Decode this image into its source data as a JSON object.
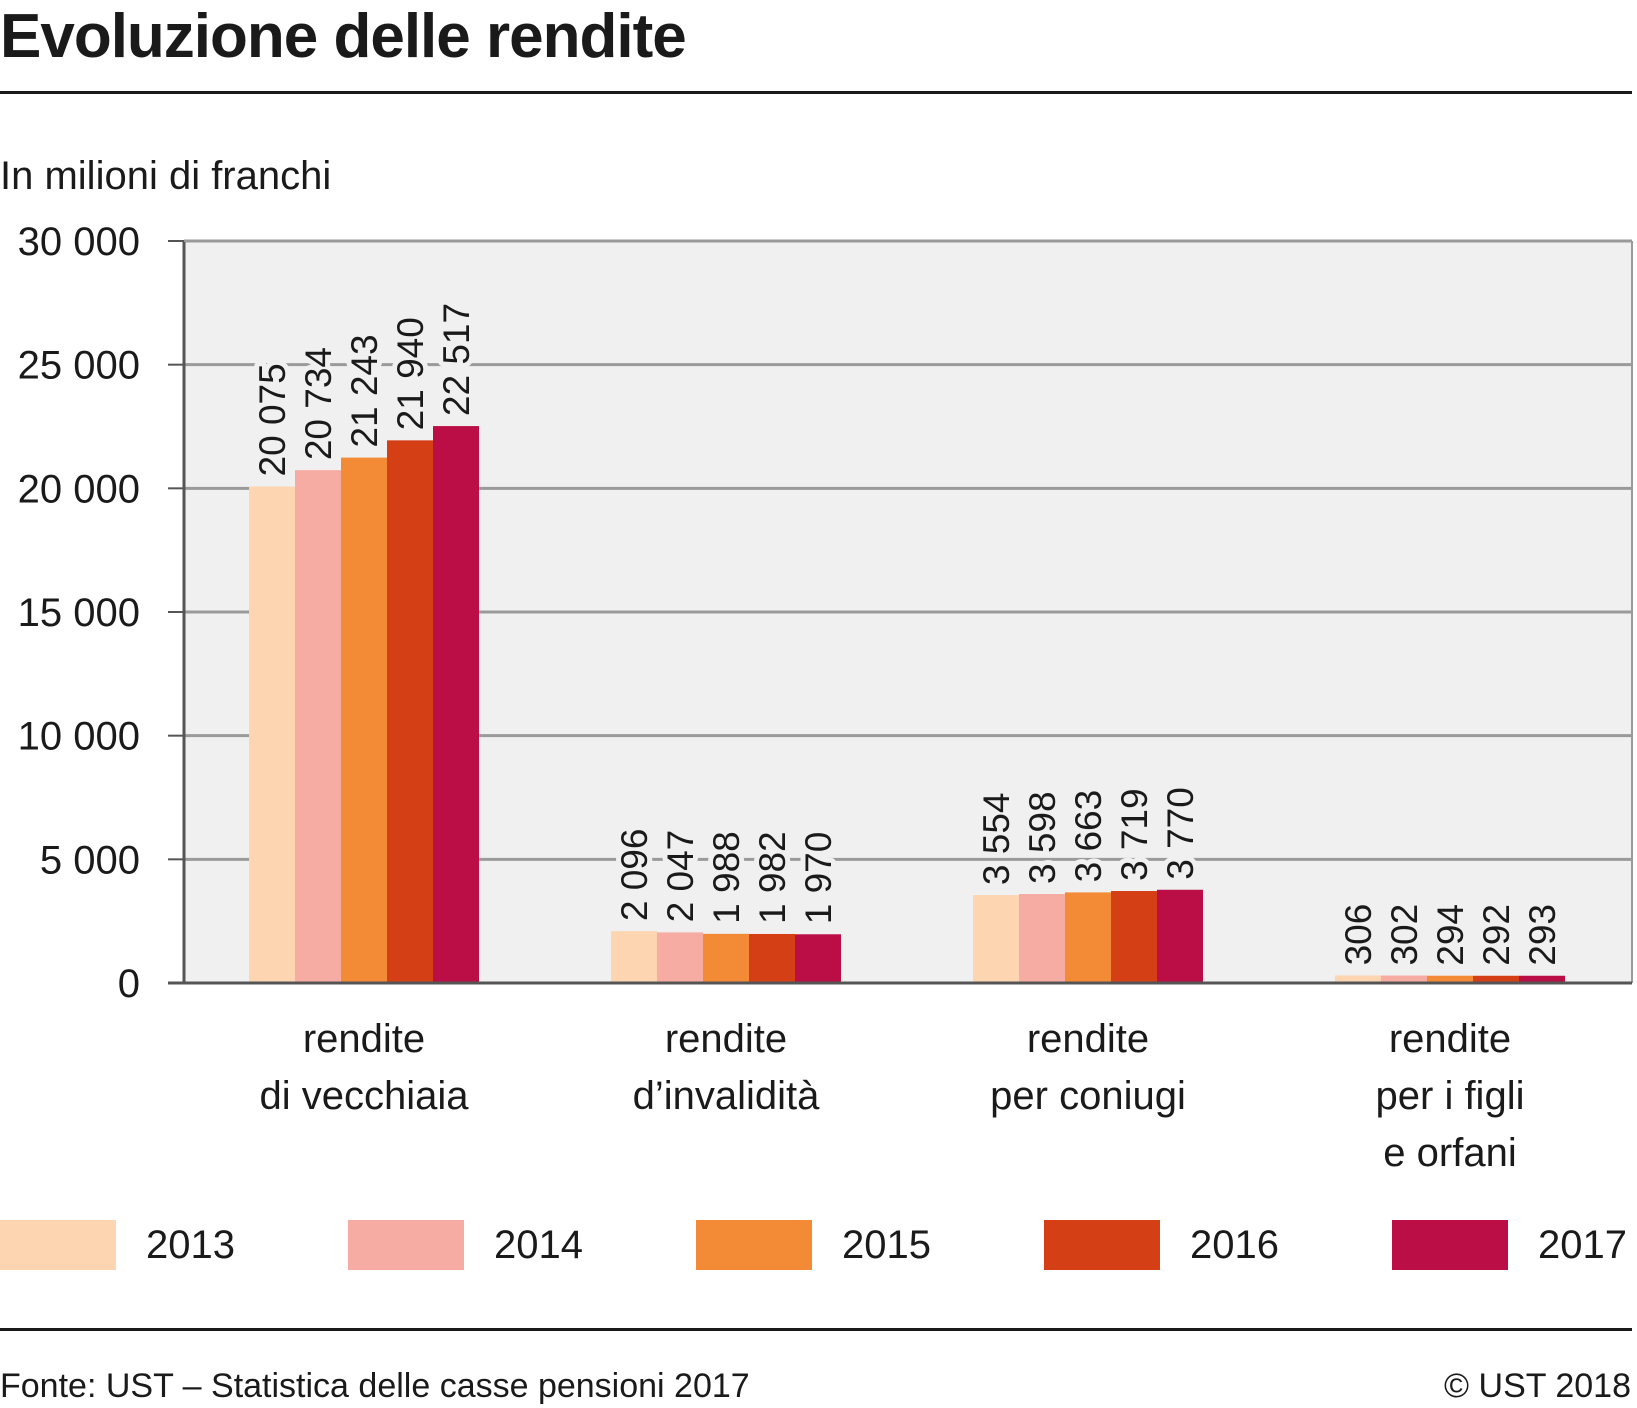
{
  "title": "Evoluzione delle rendite",
  "unit_label": "In milioni di franchi",
  "source": "Fonte: UST – Statistica delle casse pensioni 2017",
  "copyright": "© UST 2018",
  "colors": {
    "plot_background": "#f0f0f0",
    "gridline": "#9a9a9a",
    "axis": "#555555",
    "series": [
      "#fdd5b1",
      "#f6aca2",
      "#f28a36",
      "#d43f16",
      "#bb0e46"
    ]
  },
  "chart_data": {
    "type": "bar",
    "title": "Evoluzione delle rendite",
    "ylabel": "In milioni di franchi",
    "xlabel": "",
    "ylim": [
      0,
      30000
    ],
    "yticks": [
      0,
      5000,
      10000,
      15000,
      20000,
      25000,
      30000
    ],
    "ytick_labels": [
      "0",
      "5 000",
      "10 000",
      "15 000",
      "20 000",
      "25 000",
      "30 000"
    ],
    "grid": true,
    "legend_position": "bottom",
    "categories": [
      [
        "rendite",
        "di vecchiaia"
      ],
      [
        "rendite",
        "d’invalidità"
      ],
      [
        "rendite",
        "per coniugi"
      ],
      [
        "rendite",
        "per i figli",
        "e orfani"
      ]
    ],
    "series": [
      {
        "name": "2013",
        "values": [
          20075,
          2096,
          3554,
          306
        ],
        "labels": [
          "20 075",
          "2 096",
          "3 554",
          "306"
        ]
      },
      {
        "name": "2014",
        "values": [
          20734,
          2047,
          3598,
          302
        ],
        "labels": [
          "20 734",
          "2 047",
          "3 598",
          "302"
        ]
      },
      {
        "name": "2015",
        "values": [
          21243,
          1988,
          3663,
          294
        ],
        "labels": [
          "21 243",
          "1 988",
          "3 663",
          "294"
        ]
      },
      {
        "name": "2016",
        "values": [
          21940,
          1982,
          3719,
          292
        ],
        "labels": [
          "21 940",
          "1 982",
          "3 719",
          "292"
        ]
      },
      {
        "name": "2017",
        "values": [
          22517,
          1970,
          3770,
          293
        ],
        "labels": [
          "22 517",
          "1 970",
          "3 770",
          "293"
        ]
      }
    ]
  }
}
